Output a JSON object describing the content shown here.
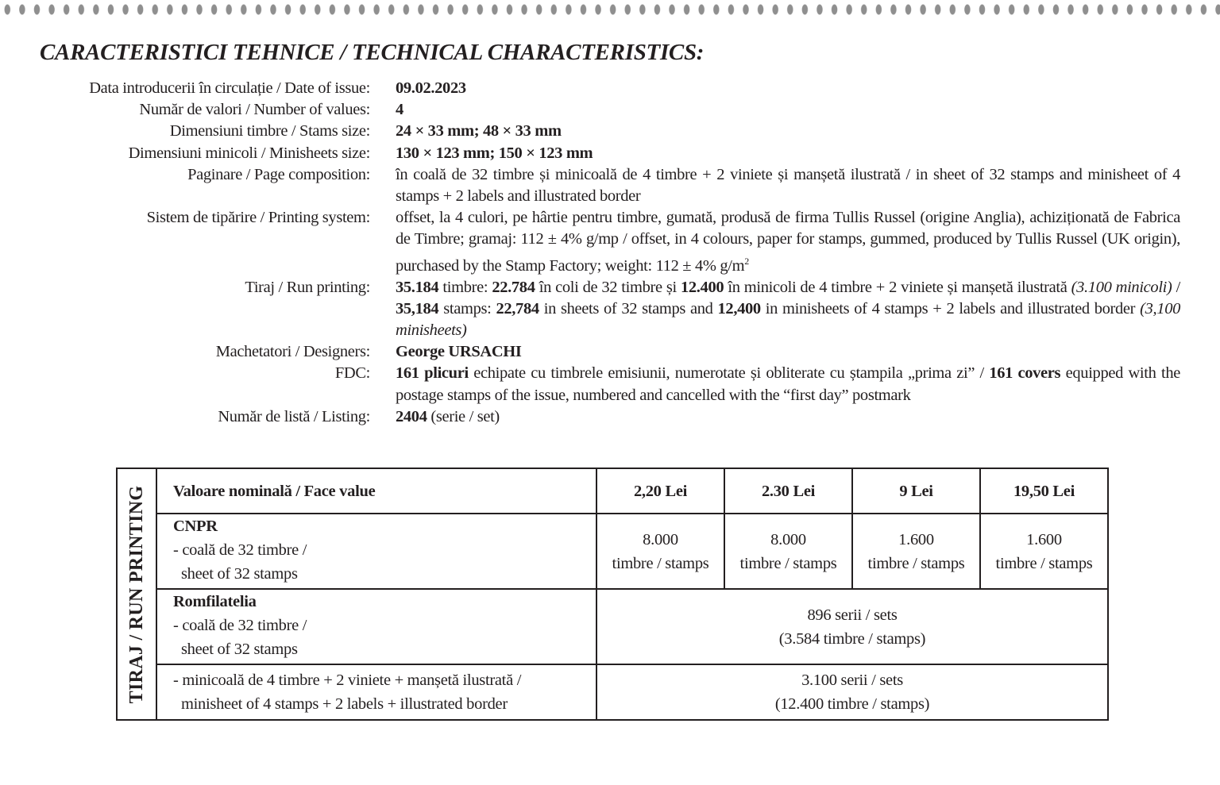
{
  "title": "CARACTERISTICI TEHNICE / TECHNICAL CHARACTERISTICS:",
  "specs": [
    {
      "label": "Data introducerii în circulație / Date of issue:",
      "value": "09.02.2023"
    },
    {
      "label": "Număr de valori / Number of values:",
      "value": "4"
    },
    {
      "label": "Dimensiuni timbre / Stams size:",
      "value": "24 × 33 mm; 48 × 33 mm"
    },
    {
      "label": "Dimensiuni minicoli / Minisheets size:",
      "value": "130 × 123 mm; 150 × 123 mm"
    },
    {
      "label": "Paginare / Page composition:",
      "value": "în coală de 32 timbre și minicoală de 4 timbre + 2 viniete și manșetă ilustrată / in sheet of 32 stamps and minisheet of 4 stamps + 2 labels and illustrated border"
    },
    {
      "label": "Sistem de tipărire / Printing system:",
      "value": "offset, la 4 culori, pe hârtie pentru timbre, gumată, produsă de firma Tullis Russel (origine Anglia), achiziționată de Fabrica de Timbre; gramaj: 112 ± 4% g/mp / offset, in 4 colours, paper for stamps, gummed, produced by Tullis Russel (UK origin), purchased by the Stamp Factory; weight: 112 ± 4% g/m",
      "value_sup": "2"
    },
    {
      "label": "Tiraj / Run printing:",
      "parts": [
        "35.184",
        " timbre: ",
        "22.784",
        " în coli de 32 timbre și ",
        "12.400",
        " în minicoli de 4 timbre + 2 viniete și manșetă ilustrată ",
        "(3.100 minicoli)",
        " / ",
        "35,184",
        " stamps: ",
        "22,784",
        " in sheets of 32 stamps and ",
        "12,400",
        " in minisheets of 4 stamps + 2 labels and illustrated border ",
        "(3,100 minisheets)"
      ]
    },
    {
      "label": "Machetatori / Designers:",
      "value": "George URSACHI"
    },
    {
      "label": "FDC:",
      "parts": [
        "161 plicuri",
        " echipate cu timbrele emisiunii, numerotate și obliterate cu ștampila „prima zi” / ",
        "161 covers",
        " equipped with the postage stamps of the issue, numbered and cancelled with the “first day” postmark"
      ]
    },
    {
      "label": "Număr de listă / Listing:",
      "parts": [
        "2404",
        " (serie / set)"
      ]
    }
  ],
  "table": {
    "side_label": "TIRAJ / RUN PRINTING",
    "header": [
      "Valoare nominală / Face value",
      "2,20 Lei",
      "2.30 Lei",
      "9 Lei",
      "19,50 Lei"
    ],
    "cnpr": {
      "title": "CNPR",
      "line1": "- coală de 32 timbre /",
      "line2": "sheet of 32 stamps",
      "values": [
        [
          "8.000",
          "timbre / stamps"
        ],
        [
          "8.000",
          "timbre / stamps"
        ],
        [
          "1.600",
          "timbre / stamps"
        ],
        [
          "1.600",
          "timbre / stamps"
        ]
      ]
    },
    "romfilatelia": {
      "title": "Romfilatelia",
      "line1": "- coală de 32 timbre /",
      "line2": "sheet of 32 stamps",
      "value1": "896 serii / sets",
      "value2": "(3.584 timbre / stamps)"
    },
    "minisheet": {
      "line1": "- minicoală de 4 timbre + 2 viniete + manșetă ilustrată /",
      "line2": "minisheet of 4 stamps + 2 labels + illustrated border",
      "value1": "3.100 serii / sets",
      "value2": "(12.400 timbre / stamps)"
    }
  }
}
